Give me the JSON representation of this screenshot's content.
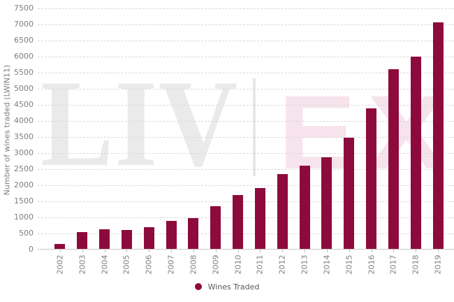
{
  "chart_data": {
    "type": "bar",
    "title": "",
    "xlabel": "",
    "ylabel": "Number of wines traded (LWIN11)",
    "categories": [
      "2002",
      "2003",
      "2004",
      "2005",
      "2006",
      "2007",
      "2008",
      "2009",
      "2010",
      "2011",
      "2012",
      "2013",
      "2014",
      "2015",
      "2016",
      "2017",
      "2018",
      "2019"
    ],
    "values": [
      160,
      530,
      600,
      580,
      680,
      860,
      950,
      1330,
      1680,
      1900,
      2330,
      2580,
      2840,
      3460,
      4360,
      5580,
      5990,
      7050
    ],
    "ylim": [
      0,
      7500
    ],
    "ytick_step": 500,
    "yticks": [
      0,
      500,
      1000,
      1500,
      2000,
      2500,
      3000,
      3500,
      4000,
      4500,
      5000,
      5500,
      6000,
      6500,
      7000,
      7500
    ],
    "grid": "horizontal-dashed",
    "legend_position": "bottom-center",
    "series": [
      {
        "name": "Wines Traded",
        "color": "#8d0b3c"
      }
    ]
  },
  "legend": {
    "label": "Wines Traded"
  },
  "watermark": {
    "left_text": "LIV",
    "right_text": "EX"
  },
  "colors": {
    "bar": "#8d0b3c",
    "gridline": "#dadada",
    "axis_line": "#c8c8c8",
    "tick_label": "#7f7f7f",
    "legend_text": "#595959",
    "watermark_gray": "#eaeaea",
    "watermark_pink": "#f6e3eb",
    "background": "#ffffff"
  }
}
